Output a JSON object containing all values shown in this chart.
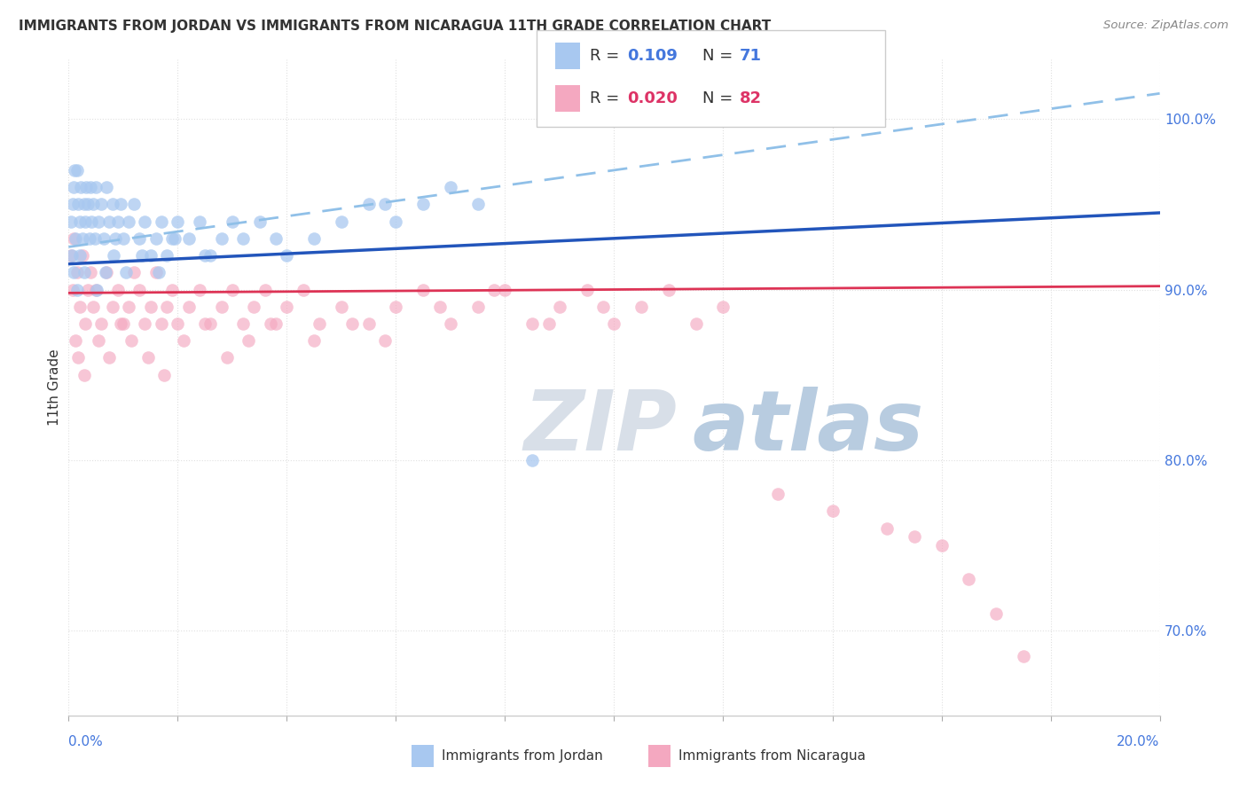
{
  "title": "IMMIGRANTS FROM JORDAN VS IMMIGRANTS FROM NICARAGUA 11TH GRADE CORRELATION CHART",
  "source": "Source: ZipAtlas.com",
  "ylabel": "11th Grade",
  "right_yticks": [
    70.0,
    80.0,
    90.0,
    100.0
  ],
  "legend_jordan": {
    "R": 0.109,
    "N": 71
  },
  "legend_nicaragua": {
    "R": 0.02,
    "N": 82
  },
  "jordan_color": "#a8c8f0",
  "nicaragua_color": "#f4a8c0",
  "jordan_line_color": "#2255bb",
  "nicaragua_line_color": "#dd3355",
  "dashed_line_color": "#90c0e8",
  "background_color": "#ffffff",
  "grid_color": "#e0e0e0",
  "blue_text_color": "#4477dd",
  "pink_text_color": "#dd3366",
  "xlim": [
    0.0,
    20.0
  ],
  "ylim": [
    65.0,
    103.5
  ],
  "jordan_x": [
    0.05,
    0.08,
    0.1,
    0.12,
    0.15,
    0.18,
    0.2,
    0.22,
    0.25,
    0.28,
    0.3,
    0.32,
    0.35,
    0.38,
    0.4,
    0.42,
    0.45,
    0.48,
    0.5,
    0.55,
    0.6,
    0.65,
    0.7,
    0.75,
    0.8,
    0.85,
    0.9,
    0.95,
    1.0,
    1.1,
    1.2,
    1.3,
    1.4,
    1.5,
    1.6,
    1.7,
    1.8,
    1.9,
    2.0,
    2.2,
    2.4,
    2.6,
    2.8,
    3.0,
    3.2,
    3.5,
    4.0,
    4.5,
    5.0,
    5.5,
    6.0,
    6.5,
    7.0,
    7.5,
    0.06,
    0.09,
    0.11,
    0.16,
    0.21,
    0.29,
    0.52,
    0.68,
    0.82,
    1.05,
    1.35,
    1.65,
    1.95,
    2.5,
    3.8,
    5.8,
    8.5
  ],
  "jordan_y": [
    94.0,
    95.0,
    96.0,
    93.0,
    97.0,
    95.0,
    94.0,
    96.0,
    93.0,
    95.0,
    94.0,
    96.0,
    95.0,
    93.0,
    96.0,
    94.0,
    95.0,
    93.0,
    96.0,
    94.0,
    95.0,
    93.0,
    96.0,
    94.0,
    95.0,
    93.0,
    94.0,
    95.0,
    93.0,
    94.0,
    95.0,
    93.0,
    94.0,
    92.0,
    93.0,
    94.0,
    92.0,
    93.0,
    94.0,
    93.0,
    94.0,
    92.0,
    93.0,
    94.0,
    93.0,
    94.0,
    92.0,
    93.0,
    94.0,
    95.0,
    94.0,
    95.0,
    96.0,
    95.0,
    92.0,
    91.0,
    97.0,
    90.0,
    92.0,
    91.0,
    90.0,
    91.0,
    92.0,
    91.0,
    92.0,
    91.0,
    93.0,
    92.0,
    93.0,
    95.0,
    80.0
  ],
  "nicaragua_x": [
    0.05,
    0.08,
    0.1,
    0.15,
    0.2,
    0.25,
    0.3,
    0.35,
    0.4,
    0.45,
    0.5,
    0.6,
    0.7,
    0.8,
    0.9,
    1.0,
    1.1,
    1.2,
    1.3,
    1.4,
    1.5,
    1.6,
    1.7,
    1.8,
    1.9,
    2.0,
    2.2,
    2.4,
    2.6,
    2.8,
    3.0,
    3.2,
    3.4,
    3.6,
    3.8,
    4.0,
    4.3,
    4.6,
    5.0,
    5.5,
    6.0,
    6.5,
    7.0,
    7.5,
    8.0,
    8.5,
    9.0,
    9.5,
    10.0,
    10.5,
    11.0,
    11.5,
    12.0,
    0.12,
    0.18,
    0.28,
    0.55,
    0.75,
    0.95,
    1.15,
    1.45,
    1.75,
    2.1,
    2.5,
    2.9,
    3.3,
    3.7,
    4.5,
    5.2,
    5.8,
    6.8,
    7.8,
    8.8,
    9.8,
    13.0,
    14.0,
    15.0,
    15.5,
    16.0,
    16.5,
    17.0,
    17.5
  ],
  "nicaragua_y": [
    92.0,
    90.0,
    93.0,
    91.0,
    89.0,
    92.0,
    88.0,
    90.0,
    91.0,
    89.0,
    90.0,
    88.0,
    91.0,
    89.0,
    90.0,
    88.0,
    89.0,
    91.0,
    90.0,
    88.0,
    89.0,
    91.0,
    88.0,
    89.0,
    90.0,
    88.0,
    89.0,
    90.0,
    88.0,
    89.0,
    90.0,
    88.0,
    89.0,
    90.0,
    88.0,
    89.0,
    90.0,
    88.0,
    89.0,
    88.0,
    89.0,
    90.0,
    88.0,
    89.0,
    90.0,
    88.0,
    89.0,
    90.0,
    88.0,
    89.0,
    90.0,
    88.0,
    89.0,
    87.0,
    86.0,
    85.0,
    87.0,
    86.0,
    88.0,
    87.0,
    86.0,
    85.0,
    87.0,
    88.0,
    86.0,
    87.0,
    88.0,
    87.0,
    88.0,
    87.0,
    89.0,
    90.0,
    88.0,
    89.0,
    78.0,
    77.0,
    76.0,
    75.5,
    75.0,
    73.0,
    71.0,
    68.5
  ],
  "jordan_line_x": [
    0.0,
    20.0
  ],
  "jordan_line_y": [
    91.5,
    94.5
  ],
  "nicaragua_line_x": [
    0.0,
    20.0
  ],
  "nicaragua_line_y": [
    89.8,
    90.2
  ],
  "dashed_line_x": [
    0.0,
    20.0
  ],
  "dashed_line_y": [
    92.5,
    101.5
  ]
}
